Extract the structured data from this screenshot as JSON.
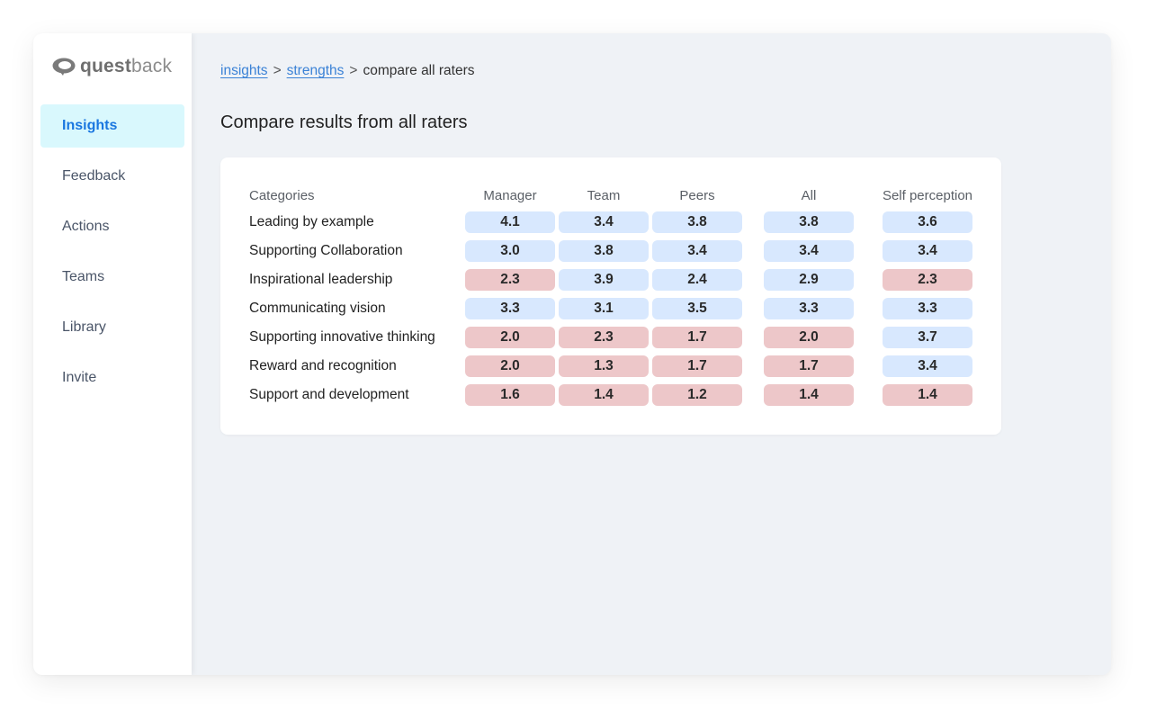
{
  "brand": {
    "name_bold": "quest",
    "name_light": "back",
    "logo_icon": "speech-bubble-icon"
  },
  "sidebar": {
    "items": [
      {
        "label": "Insights",
        "active": true
      },
      {
        "label": "Feedback",
        "active": false
      },
      {
        "label": "Actions",
        "active": false
      },
      {
        "label": "Teams",
        "active": false
      },
      {
        "label": "Library",
        "active": false
      },
      {
        "label": "Invite",
        "active": false
      }
    ]
  },
  "breadcrumb": {
    "links": [
      "insights",
      "strengths"
    ],
    "separator": ">",
    "current": "compare all raters"
  },
  "page": {
    "title": "Compare results from all raters"
  },
  "table": {
    "columns": [
      "Categories",
      "Manager",
      "Team",
      "Peers",
      "All",
      "Self perception"
    ],
    "rows": [
      {
        "category": "Leading by example",
        "values": [
          "4.1",
          "3.4",
          "3.8",
          "3.8",
          "3.6"
        ],
        "status": [
          "high",
          "high",
          "high",
          "high",
          "high"
        ]
      },
      {
        "category": "Supporting Collaboration",
        "values": [
          "3.0",
          "3.8",
          "3.4",
          "3.4",
          "3.4"
        ],
        "status": [
          "high",
          "high",
          "high",
          "high",
          "high"
        ]
      },
      {
        "category": "Inspirational leadership",
        "values": [
          "2.3",
          "3.9",
          "2.4",
          "2.9",
          "2.3"
        ],
        "status": [
          "low",
          "high",
          "high",
          "high",
          "low"
        ]
      },
      {
        "category": "Communicating vision",
        "values": [
          "3.3",
          "3.1",
          "3.5",
          "3.3",
          "3.3"
        ],
        "status": [
          "high",
          "high",
          "high",
          "high",
          "high"
        ]
      },
      {
        "category": "Supporting innovative thinking",
        "values": [
          "2.0",
          "2.3",
          "1.7",
          "2.0",
          "3.7"
        ],
        "status": [
          "low",
          "low",
          "low",
          "low",
          "high"
        ]
      },
      {
        "category": "Reward and recognition",
        "values": [
          "2.0",
          "1.3",
          "1.7",
          "1.7",
          "3.4"
        ],
        "status": [
          "low",
          "low",
          "low",
          "low",
          "high"
        ]
      },
      {
        "category": "Support and development",
        "values": [
          "1.6",
          "1.4",
          "1.2",
          "1.4",
          "1.4"
        ],
        "status": [
          "low",
          "low",
          "low",
          "low",
          "low"
        ]
      }
    ]
  },
  "colors": {
    "high": "#d8e8fe",
    "low": "#edc7c9",
    "accent": "#1a77e0",
    "active_bg": "#d9f8fd"
  }
}
